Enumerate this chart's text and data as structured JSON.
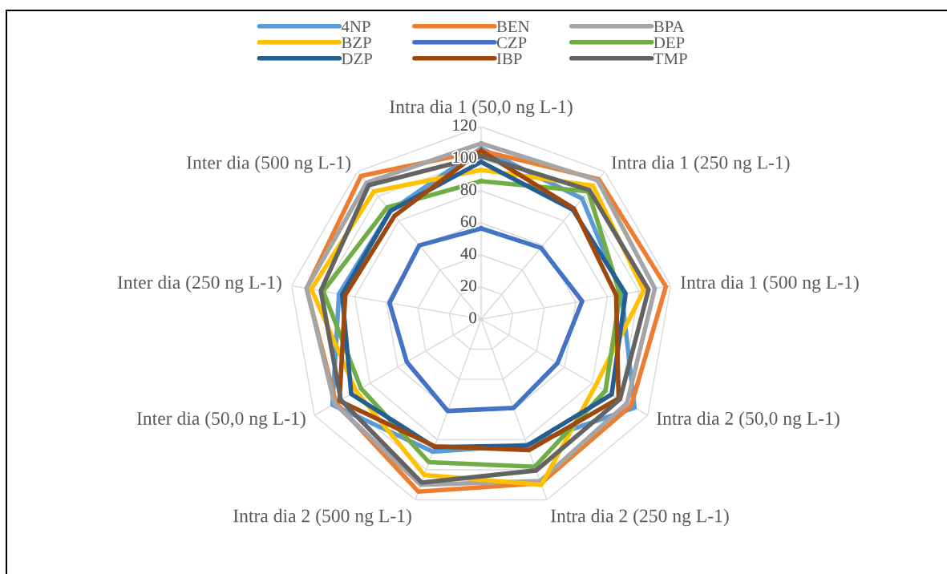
{
  "chart_data": {
    "type": "radar",
    "categories": [
      "Intra dia 1 (50,0 ng L-1)",
      "Intra dia 1 (250 ng L-1)",
      "Intra dia 1 (500 ng L-1)",
      "Intra dia 2 (50,0 ng L-1)",
      "Intra dia 2 (250 ng L-1)",
      "Intra dia 2 (500 ng L-1)",
      "Inter dia (50,0 ng L-1)",
      "Inter dia (250 ng L-1)",
      "Inter dia (500 ng L-1)"
    ],
    "ylim": [
      0,
      120
    ],
    "yticks": [
      0,
      20,
      40,
      60,
      80,
      100,
      120
    ],
    "grid": true,
    "legend": "top",
    "marker": "none",
    "line_style": "solid",
    "series": [
      {
        "name": "4NP",
        "color": "#5b9bd5",
        "values": [
          106.5,
          98,
          89,
          110.5,
          83.5,
          88,
          107,
          90,
          88
        ]
      },
      {
        "name": "BEN",
        "color": "#ed7d31",
        "values": [
          105,
          114,
          117,
          108,
          109,
          114.5,
          104.5,
          110.5,
          116.5
        ]
      },
      {
        "name": "BPA",
        "color": "#a5a5a5",
        "values": [
          109.5,
          113,
          110,
          105,
          107.5,
          110,
          105.5,
          110.5,
          111
        ]
      },
      {
        "name": "BZP",
        "color": "#ffc000",
        "values": [
          93,
          108.5,
          103,
          82.5,
          110,
          103.5,
          90,
          107.5,
          104
        ]
      },
      {
        "name": "CZP",
        "color": "#4472c4",
        "values": [
          56.5,
          58,
          64,
          55,
          59,
          61,
          53.5,
          58,
          60
        ]
      },
      {
        "name": "DEP",
        "color": "#70ad47",
        "values": [
          86,
          104,
          88,
          89.5,
          98,
          95,
          86.5,
          100,
          91
        ]
      },
      {
        "name": "DZP",
        "color": "#255e91",
        "values": [
          98,
          89,
          91.5,
          94,
          84,
          85,
          93.5,
          88,
          88
        ]
      },
      {
        "name": "IBP",
        "color": "#9e480e",
        "values": [
          105,
          90,
          85.5,
          99,
          87,
          84.5,
          102,
          86,
          84
        ]
      },
      {
        "name": "TMP",
        "color": "#636363",
        "values": [
          101.5,
          105,
          106,
          100,
          100.5,
          108.5,
          101,
          101.5,
          109
        ]
      }
    ]
  }
}
